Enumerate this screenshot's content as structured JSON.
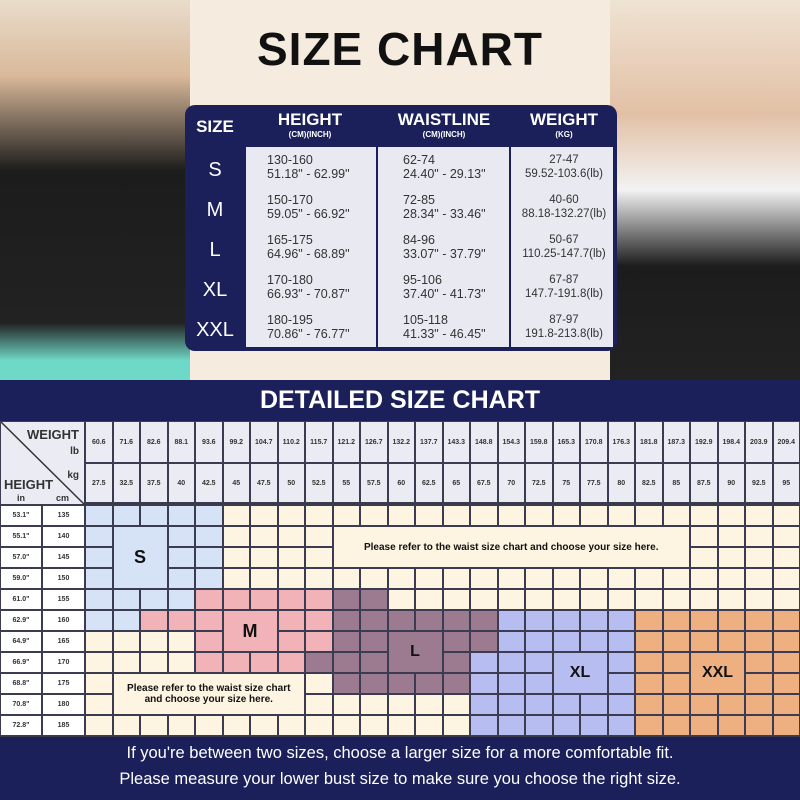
{
  "title": "SIZE CHART",
  "size_table": {
    "headers": {
      "size": "SIZE",
      "height": "HEIGHT",
      "height_unit": "(CM)(INCH)",
      "waist": "WAISTLINE",
      "waist_unit": "(CM)(INCH)",
      "weight": "WEIGHT",
      "weight_unit": "(KG)"
    },
    "rows": [
      {
        "size": "S",
        "h1": "130-160",
        "h2": "51.18\" - 62.99\"",
        "w1": "62-74",
        "w2": "24.40\" - 29.13\"",
        "k1": "27-47",
        "k2": "59.52-103.6(lb)"
      },
      {
        "size": "M",
        "h1": "150-170",
        "h2": "59.05\" - 66.92\"",
        "w1": "72-85",
        "w2": "28.34\" - 33.46\"",
        "k1": "40-60",
        "k2": "88.18-132.27(lb)"
      },
      {
        "size": "L",
        "h1": "165-175",
        "h2": "64.96\" - 68.89\"",
        "w1": "84-96",
        "w2": "33.07\" - 37.79\"",
        "k1": "50-67",
        "k2": "110.25-147.7(lb)"
      },
      {
        "size": "XL",
        "h1": "170-180",
        "h2": "66.93\" - 70.87\"",
        "w1": "95-106",
        "w2": "37.40\" - 41.73\"",
        "k1": "67-87",
        "k2": "147.7-191.8(lb)"
      },
      {
        "size": "XXL",
        "h1": "180-195",
        "h2": "70.86\" - 76.77\"",
        "w1": "105-118",
        "w2": "41.33\" - 46.45\"",
        "k1": "87-97",
        "k2": "191.8-213.8(lb)"
      }
    ]
  },
  "detailed": {
    "title": "DETAILED SIZE CHART",
    "weight_label": "WEIGHT",
    "lb": "lb",
    "kg": "kg",
    "height_label": "HEIGHT",
    "in": "in",
    "cm": "cm",
    "weights_lb": [
      "60.6",
      "71.6",
      "82.6",
      "88.1",
      "93.6",
      "99.2",
      "104.7",
      "110.2",
      "115.7",
      "121.2",
      "126.7",
      "132.2",
      "137.7",
      "143.3",
      "148.8",
      "154.3",
      "159.8",
      "165.3",
      "170.8",
      "176.3",
      "181.8",
      "187.3",
      "192.9",
      "198.4",
      "203.9",
      "209.4"
    ],
    "weights_kg": [
      "27.5",
      "32.5",
      "37.5",
      "40",
      "42.5",
      "45",
      "47.5",
      "50",
      "52.5",
      "55",
      "57.5",
      "60",
      "62.5",
      "65",
      "67.5",
      "70",
      "72.5",
      "75",
      "77.5",
      "80",
      "82.5",
      "85",
      "87.5",
      "90",
      "92.5",
      "95"
    ],
    "heights_in": [
      "53.1\"",
      "55.1\"",
      "57.0\"",
      "59.0\"",
      "61.0\"",
      "62.9\"",
      "64.9\"",
      "66.9\"",
      "68.8\"",
      "70.8\"",
      "72.8\""
    ],
    "heights_cm": [
      "135",
      "140",
      "145",
      "150",
      "155",
      "160",
      "165",
      "170",
      "175",
      "180",
      "185"
    ],
    "size_map": [
      "SSSSS.....................",
      "SSSSS.....................",
      "SSSSS.....................",
      "SSSSS.....................",
      "SSSSMMMMMLL...............",
      "SSMMMMMMMLLLLLLXXXXXZZZZZZ",
      "....MMMMMLLLLLLXXXXXZZZZZZ",
      "....MMMMLLLLLLXXXXXXZZZZZZ",
      ".........LLLLLXXXXXXZZZZZZ",
      "..............XXXXXXZZZZZZ",
      "..............XXXXXXZZZZZZ"
    ],
    "size_labels": {
      "S": "S",
      "M": "M",
      "L": "L",
      "X": "XL",
      "Z": "XXL"
    },
    "colors": {
      "S": "#d6e2f5",
      "M": "#f2b3b8",
      "L": "#9c7a90",
      "X": "#b7bdf0",
      "Z": "#efb081",
      ".": "#fdf4e1",
      "header": "#ebebf3"
    },
    "note_top": "Please refer to the waist size chart and choose your size here.",
    "note_bottom": "Please refer to the waist size chart and choose your size here."
  },
  "footer": {
    "line1": "If you're between two sizes, choose a larger size for a more comfortable fit.",
    "line2": "Please measure your lower bust size to make sure you choose the right size."
  }
}
